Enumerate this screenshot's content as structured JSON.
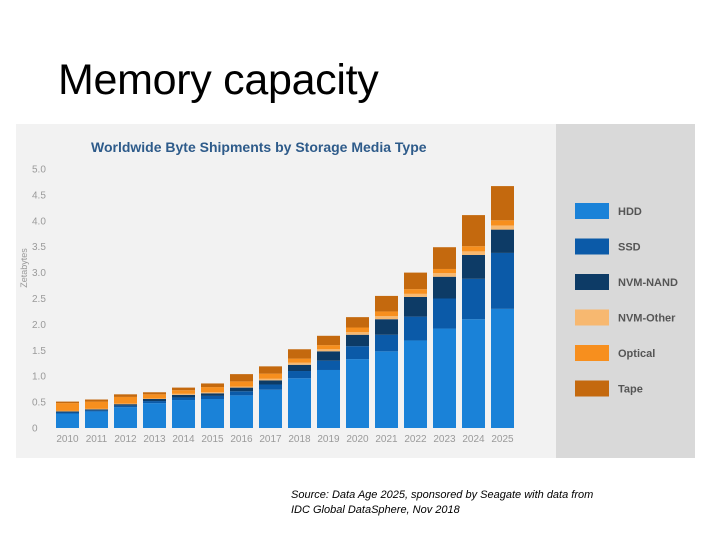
{
  "slide": {
    "title": "Memory capacity",
    "caption_line1": "Source: Data Age 2025, sponsored by Seagate with data from",
    "caption_line2": "IDC Global DataSphere, Nov 2018"
  },
  "colors": {
    "HDD": "#1a82d8",
    "SSD": "#0b5aa8",
    "NVM-NAND": "#0d3b66",
    "NVM-Other": "#f7b870",
    "Optical": "#f78f1e",
    "Tape": "#c4690e",
    "title_text": "#2e5b8a",
    "axis_text": "#9a9a9a"
  },
  "chart_data": {
    "type": "bar",
    "stacked": true,
    "title": "Worldwide Byte Shipments by Storage Media Type",
    "ylabel": "Zetabytes",
    "xlabel": "",
    "ylim": [
      0,
      5.0
    ],
    "yticks": [
      "5.0",
      "4.5",
      "4.0",
      "3.5",
      "3.0",
      "2.5",
      "2.0",
      "1.5",
      "1.0",
      "0.5",
      "0"
    ],
    "ytick_values": [
      5.0,
      4.5,
      4.0,
      3.5,
      3.0,
      2.5,
      2.0,
      1.5,
      1.0,
      0.5,
      0
    ],
    "grid": false,
    "legend_position": "right",
    "categories": [
      "2010",
      "2011",
      "2012",
      "2013",
      "2014",
      "2015",
      "2016",
      "2017",
      "2018",
      "2019",
      "2020",
      "2021",
      "2022",
      "2023",
      "2024",
      "2025"
    ],
    "series": [
      {
        "name": "HDD",
        "values": [
          0.28,
          0.32,
          0.4,
          0.48,
          0.54,
          0.56,
          0.63,
          0.74,
          0.96,
          1.12,
          1.33,
          1.48,
          1.69,
          1.92,
          2.1,
          2.3
        ]
      },
      {
        "name": "SSD",
        "values": [
          0.02,
          0.02,
          0.03,
          0.04,
          0.05,
          0.06,
          0.08,
          0.1,
          0.14,
          0.18,
          0.25,
          0.32,
          0.46,
          0.58,
          0.78,
          1.08
        ]
      },
      {
        "name": "NVM-NAND",
        "values": [
          0.02,
          0.02,
          0.03,
          0.04,
          0.05,
          0.05,
          0.07,
          0.08,
          0.12,
          0.18,
          0.22,
          0.3,
          0.38,
          0.42,
          0.46,
          0.45
        ]
      },
      {
        "name": "NVM-Other",
        "values": [
          0.01,
          0.01,
          0.01,
          0.01,
          0.02,
          0.02,
          0.02,
          0.03,
          0.04,
          0.04,
          0.05,
          0.06,
          0.06,
          0.07,
          0.07,
          0.08
        ]
      },
      {
        "name": "Optical",
        "values": [
          0.15,
          0.14,
          0.13,
          0.08,
          0.07,
          0.1,
          0.1,
          0.1,
          0.08,
          0.08,
          0.09,
          0.09,
          0.09,
          0.08,
          0.1,
          0.1
        ]
      },
      {
        "name": "Tape",
        "values": [
          0.03,
          0.04,
          0.05,
          0.04,
          0.05,
          0.07,
          0.14,
          0.14,
          0.18,
          0.18,
          0.2,
          0.3,
          0.32,
          0.42,
          0.6,
          0.66
        ]
      }
    ]
  }
}
